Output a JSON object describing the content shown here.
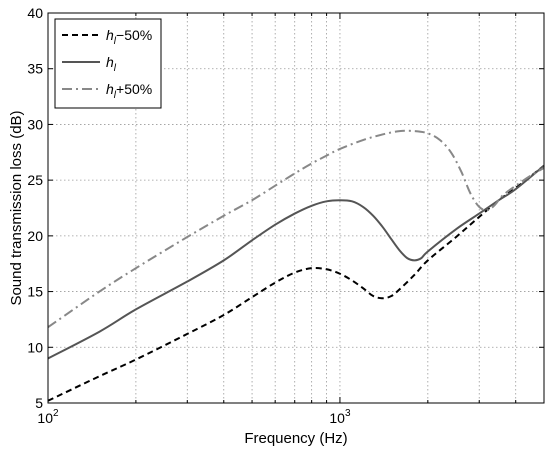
{
  "chart_data": {
    "type": "line",
    "title": "",
    "xlabel": "Frequency (Hz)",
    "ylabel": "Sound transmission loss (dB)",
    "xscale": "log",
    "xlim": [
      100,
      5000
    ],
    "ylim": [
      5,
      40
    ],
    "x_ticks": [
      {
        "value": 100,
        "base": "10",
        "exp": "2"
      },
      {
        "value": 1000,
        "base": "10",
        "exp": "3"
      }
    ],
    "y_ticks": [
      "5",
      "10",
      "15",
      "20",
      "25",
      "30",
      "35",
      "40"
    ],
    "grid": true,
    "legend_position": "top-left",
    "series": [
      {
        "name": "h_l−50%",
        "legend_main": "h",
        "legend_sub": "l",
        "legend_suffix": "−50%",
        "style": "dashed",
        "color": "#000000",
        "x": [
          100,
          150,
          200,
          300,
          400,
          500,
          600,
          700,
          800,
          900,
          1000,
          1100,
          1200,
          1300,
          1400,
          1500,
          1600,
          1800,
          2000,
          2500,
          3000,
          3500,
          4000,
          5000
        ],
        "y": [
          5.2,
          7.4,
          8.9,
          11.2,
          12.9,
          14.5,
          15.8,
          16.7,
          17.1,
          17.0,
          16.6,
          16.0,
          15.3,
          14.6,
          14.4,
          14.6,
          15.2,
          16.5,
          17.8,
          19.9,
          21.7,
          23.2,
          24.3,
          26.3
        ]
      },
      {
        "name": "h_l",
        "legend_main": "h",
        "legend_sub": "l",
        "legend_suffix": "",
        "style": "solid",
        "color": "#555555",
        "x": [
          100,
          150,
          200,
          300,
          400,
          500,
          600,
          700,
          800,
          900,
          1000,
          1100,
          1200,
          1300,
          1400,
          1500,
          1600,
          1700,
          1800,
          1900,
          2000,
          2500,
          3000,
          3500,
          4000,
          5000
        ],
        "y": [
          9.0,
          11.4,
          13.4,
          15.9,
          17.8,
          19.6,
          21.0,
          22.0,
          22.7,
          23.1,
          23.2,
          23.1,
          22.6,
          21.8,
          20.8,
          19.7,
          18.7,
          18.0,
          17.8,
          18.0,
          18.6,
          20.6,
          22.0,
          23.2,
          24.2,
          26.3
        ]
      },
      {
        "name": "h_l+50%",
        "legend_main": "h",
        "legend_sub": "l",
        "legend_suffix": "+50%",
        "style": "dashdot",
        "color": "#888888",
        "x": [
          100,
          150,
          200,
          300,
          400,
          500,
          600,
          700,
          800,
          900,
          1000,
          1200,
          1400,
          1600,
          1800,
          2000,
          2200,
          2400,
          2600,
          2800,
          3000,
          3200,
          3400,
          3600,
          4000,
          4500,
          5000
        ],
        "y": [
          11.8,
          15.0,
          17.1,
          19.9,
          21.8,
          23.2,
          24.5,
          25.6,
          26.5,
          27.2,
          27.8,
          28.6,
          29.1,
          29.4,
          29.4,
          29.2,
          28.6,
          27.5,
          25.8,
          23.8,
          22.6,
          22.3,
          22.8,
          23.6,
          24.5,
          25.4,
          26.1
        ]
      }
    ]
  }
}
